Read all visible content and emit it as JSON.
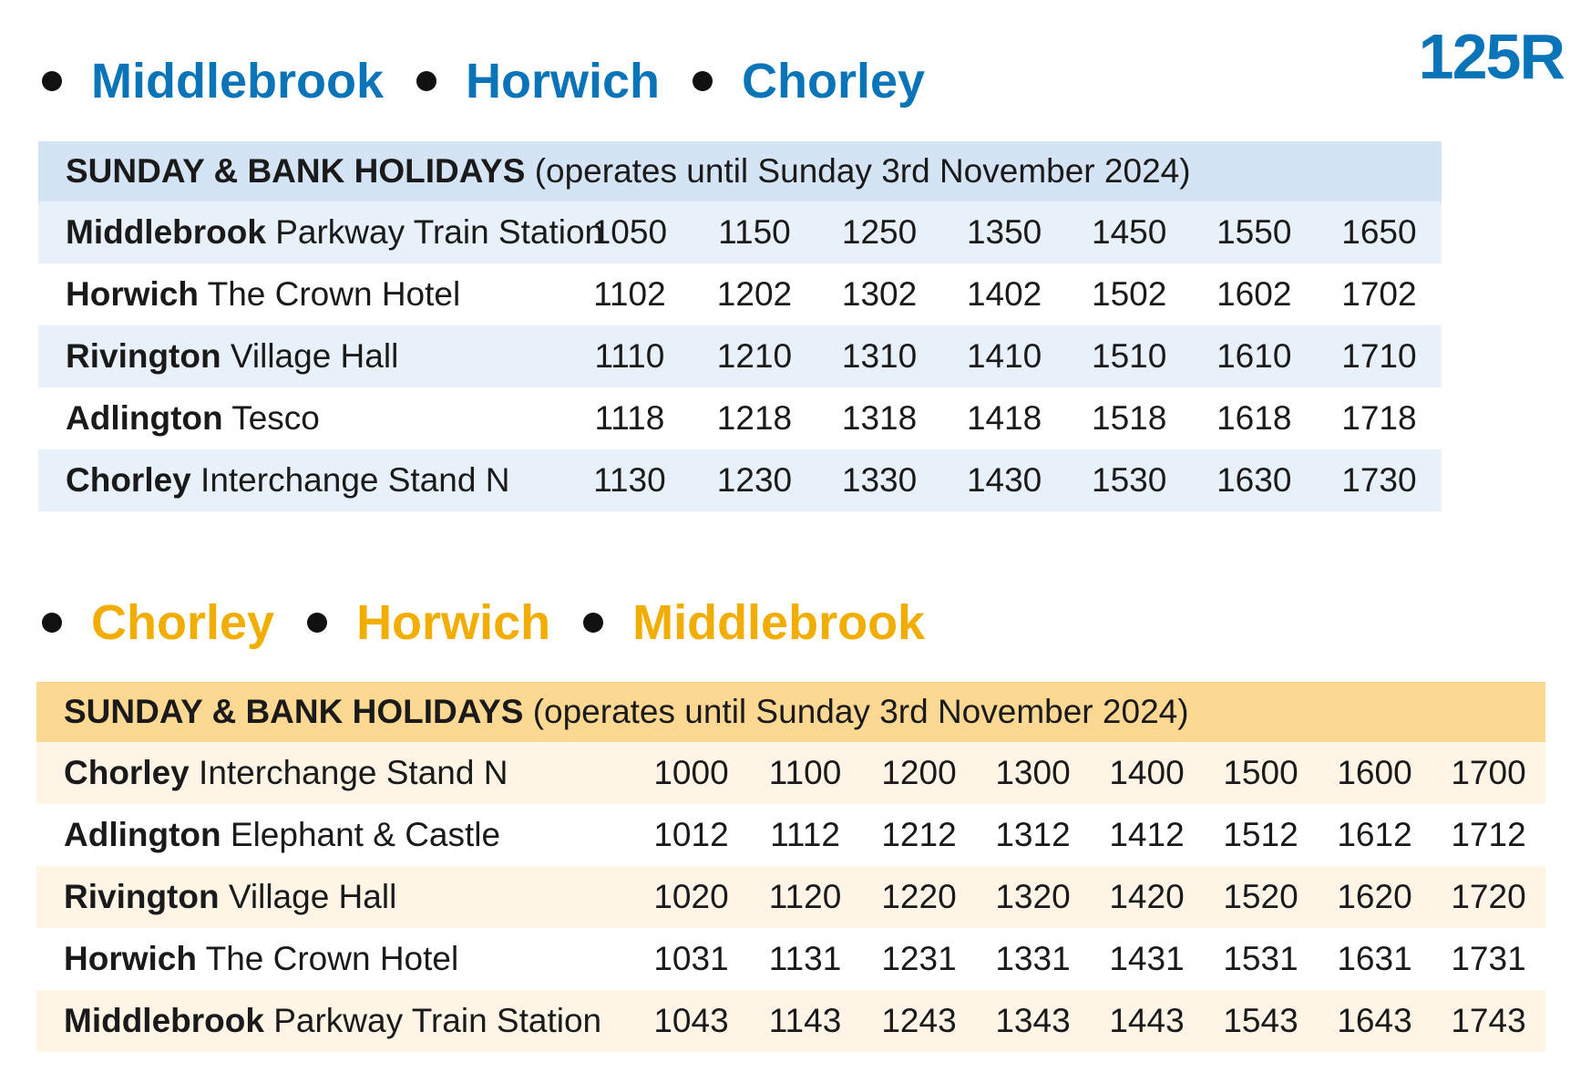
{
  "route_code": "125R",
  "outbound": {
    "heading": [
      "Middlebrook",
      "Horwich",
      "Chorley"
    ],
    "header_bold": "SUNDAY & BANK HOLIDAYS",
    "header_note": "(operates until Sunday 3rd November 2024)",
    "rows": [
      {
        "stop_bold": "Middlebrook",
        "stop_rest": "Parkway Train Station",
        "times": [
          "1050",
          "1150",
          "1250",
          "1350",
          "1450",
          "1550",
          "1650"
        ]
      },
      {
        "stop_bold": "Horwich",
        "stop_rest": "The Crown Hotel",
        "times": [
          "1102",
          "1202",
          "1302",
          "1402",
          "1502",
          "1602",
          "1702"
        ]
      },
      {
        "stop_bold": "Rivington",
        "stop_rest": "Village Hall",
        "times": [
          "1110",
          "1210",
          "1310",
          "1410",
          "1510",
          "1610",
          "1710"
        ]
      },
      {
        "stop_bold": "Adlington",
        "stop_rest": "Tesco",
        "times": [
          "1118",
          "1218",
          "1318",
          "1418",
          "1518",
          "1618",
          "1718"
        ]
      },
      {
        "stop_bold": "Chorley",
        "stop_rest": "Interchange Stand N",
        "times": [
          "1130",
          "1230",
          "1330",
          "1430",
          "1530",
          "1630",
          "1730"
        ]
      }
    ]
  },
  "inbound": {
    "heading": [
      "Chorley",
      "Horwich",
      "Middlebrook"
    ],
    "header_bold": "SUNDAY & BANK HOLIDAYS",
    "header_note": "(operates until Sunday 3rd November 2024)",
    "rows": [
      {
        "stop_bold": "Chorley",
        "stop_rest": "Interchange Stand N",
        "times": [
          "1000",
          "1100",
          "1200",
          "1300",
          "1400",
          "1500",
          "1600",
          "1700"
        ]
      },
      {
        "stop_bold": "Adlington",
        "stop_rest": "Elephant & Castle",
        "times": [
          "1012",
          "1112",
          "1212",
          "1312",
          "1412",
          "1512",
          "1612",
          "1712"
        ]
      },
      {
        "stop_bold": "Rivington",
        "stop_rest": "Village Hall",
        "times": [
          "1020",
          "1120",
          "1220",
          "1320",
          "1420",
          "1520",
          "1620",
          "1720"
        ]
      },
      {
        "stop_bold": "Horwich",
        "stop_rest": "The Crown Hotel",
        "times": [
          "1031",
          "1131",
          "1231",
          "1331",
          "1431",
          "1531",
          "1631",
          "1731"
        ]
      },
      {
        "stop_bold": "Middlebrook",
        "stop_rest": "Parkway Train Station",
        "times": [
          "1043",
          "1143",
          "1243",
          "1343",
          "1443",
          "1543",
          "1643",
          "1743"
        ]
      }
    ]
  },
  "colors": {
    "outbound_accent": "#0a74b8",
    "inbound_accent": "#f2ae00"
  }
}
